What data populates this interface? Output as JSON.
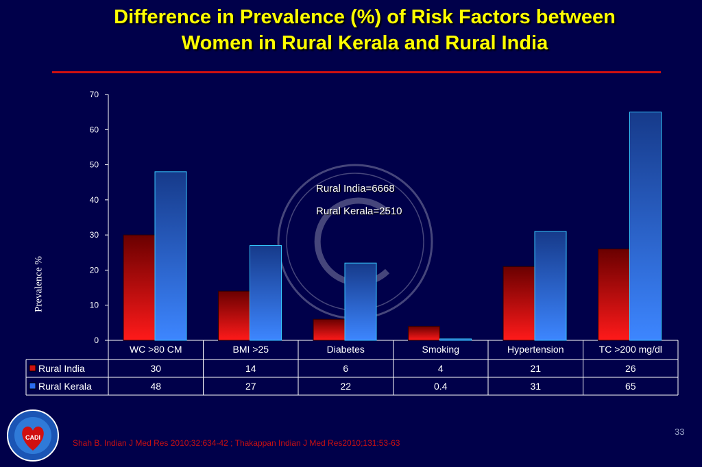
{
  "slide": {
    "title_line1": "Difference in  Prevalence (%) of Risk Factors between",
    "title_line2": "Women in Rural Kerala and Rural  India",
    "slide_number": "33",
    "footnote": "Shah B. Indian J Med Res 2010;32:634-42 ; Thakappan Indian J Med Res2010;131:53-63",
    "annotation_line1": "Rural  India=6668",
    "annotation_line2": "Rural Kerala=2510",
    "logo_text": "CADI"
  },
  "colors": {
    "background": "#00004a",
    "title": "#ffff00",
    "rule": "#d01010",
    "rural_india": "#d01010",
    "rural_kerala": "#2b6cf0",
    "footnote": "#cc1010"
  },
  "chart_data": {
    "type": "bar",
    "categories": [
      "WC >80 CM",
      "BMI >25",
      "Diabetes",
      "Smoking",
      "Hypertension",
      "TC >200 mg/dl"
    ],
    "series": [
      {
        "name": "Rural India",
        "values": [
          30,
          14,
          6,
          4,
          21,
          26
        ],
        "labels": [
          "30",
          "14",
          "6",
          "4",
          "21",
          "26"
        ]
      },
      {
        "name": "Rural Kerala",
        "values": [
          48,
          27,
          22,
          0.4,
          31,
          65
        ],
        "labels": [
          "48",
          "27",
          "22",
          "0.4",
          "31",
          "65"
        ]
      }
    ],
    "ylabel": "Prevalence %",
    "xlabel": "",
    "ylim": [
      0,
      70
    ],
    "yticks": [
      0,
      10,
      20,
      30,
      40,
      50,
      60,
      70
    ],
    "grid": false,
    "legend": "data-table"
  }
}
